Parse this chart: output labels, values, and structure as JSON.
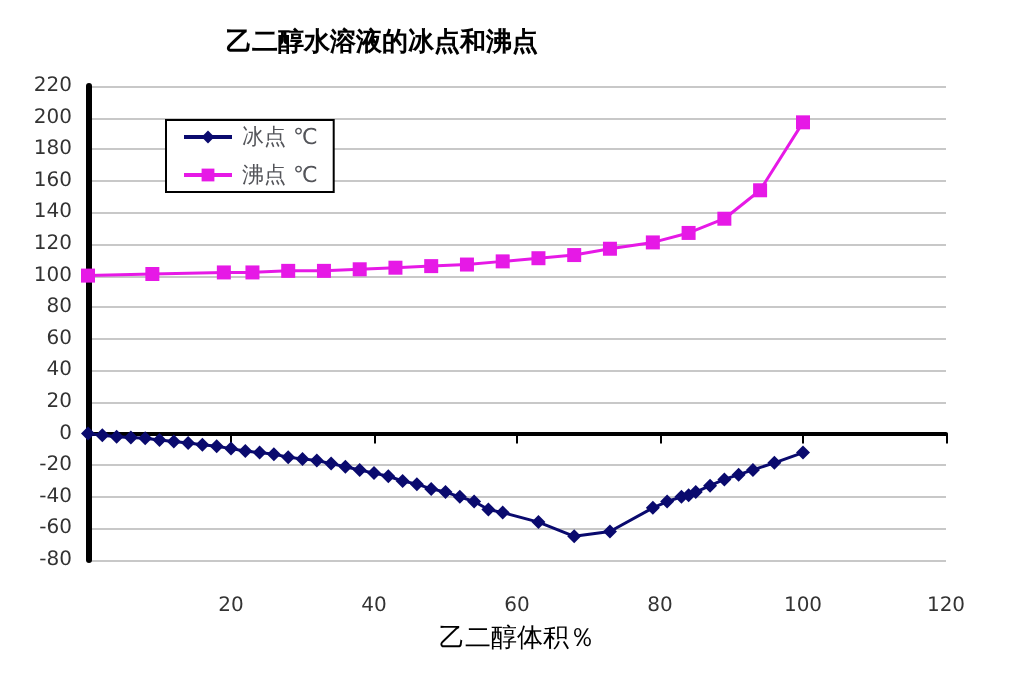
{
  "chart_data": {
    "type": "line",
    "title": "乙二醇水溶液的冰点和沸点",
    "xlabel": "乙二醇体积％",
    "xlim": [
      0,
      120
    ],
    "xticks": [
      {
        "value": 0,
        "label": null
      },
      20,
      40,
      60,
      80,
      100,
      120
    ],
    "ylim": [
      -80,
      220
    ],
    "yticks": [
      -80,
      -60,
      -40,
      -20,
      0,
      20,
      40,
      60,
      80,
      100,
      120,
      140,
      160,
      180,
      200,
      220
    ],
    "grid": "y",
    "legend": "top left",
    "series": [
      {
        "name": "冰点 ℃",
        "color": "#0a0a6e",
        "marker": "diamond",
        "x": [
          0,
          2,
          4,
          6,
          8,
          10,
          12,
          14,
          16,
          18,
          20,
          22,
          24,
          26,
          28,
          30,
          32,
          34,
          36,
          38,
          40,
          42,
          44,
          46,
          48,
          50,
          52,
          54,
          56,
          58,
          63,
          68,
          73,
          79,
          81,
          83,
          84,
          85,
          87,
          89,
          91,
          93,
          96,
          100
        ],
        "values": [
          0,
          -1,
          -2,
          -2.5,
          -3,
          -4,
          -5,
          -6,
          -7,
          -8,
          -9.5,
          -11,
          -12,
          -13,
          -15,
          -16,
          -17,
          -19,
          -21,
          -23,
          -25,
          -27,
          -30,
          -32,
          -35,
          -37,
          -40,
          -43,
          -48,
          -50,
          -56,
          -65,
          -62,
          -47,
          -43,
          -40,
          -39,
          -37,
          -33,
          -29,
          -26,
          -23,
          -18.5,
          -12
        ]
      },
      {
        "name": "沸点 ℃",
        "color": "#e619e6",
        "marker": "square",
        "x": [
          0,
          9,
          19,
          23,
          28,
          33,
          38,
          43,
          48,
          53,
          58,
          63,
          68,
          73,
          79,
          84,
          89,
          94,
          100
        ],
        "values": [
          100,
          101,
          102,
          102,
          103,
          103,
          104,
          105,
          106,
          107,
          109,
          111,
          113,
          117,
          121,
          127,
          136,
          154,
          197
        ]
      }
    ]
  }
}
